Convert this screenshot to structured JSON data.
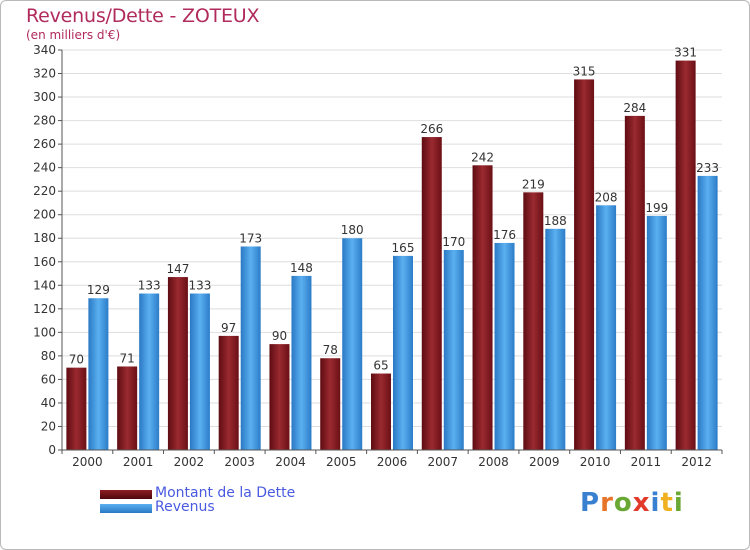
{
  "header": {
    "title": "Revenus/Dette - ZOTEUX",
    "subtitle": "(en milliers d'€)"
  },
  "chart_data": {
    "type": "bar",
    "categories": [
      "2000",
      "2001",
      "2002",
      "2003",
      "2004",
      "2005",
      "2006",
      "2007",
      "2008",
      "2009",
      "2010",
      "2011",
      "2012"
    ],
    "series": [
      {
        "name": "Montant de la Dette",
        "color": "#8b1f24",
        "values": [
          70,
          71,
          147,
          97,
          90,
          78,
          65,
          266,
          242,
          219,
          315,
          284,
          331
        ]
      },
      {
        "name": "Revenus",
        "color": "#3a95de",
        "values": [
          129,
          133,
          133,
          173,
          148,
          180,
          165,
          170,
          176,
          188,
          208,
          199,
          233
        ]
      }
    ],
    "yticks": [
      0,
      20,
      40,
      60,
      80,
      100,
      120,
      140,
      160,
      180,
      200,
      220,
      240,
      260,
      280,
      300,
      320,
      340
    ],
    "ylim": [
      0,
      340
    ],
    "grid": true,
    "legend_position": "bottom-left"
  },
  "legend": {
    "dette_label": "Montant de la Dette",
    "revenus_label": "Revenus"
  },
  "logo": {
    "text": "Proxiti",
    "letter_colors": [
      "#3a80d0",
      "#e8742a",
      "#6aa834",
      "#e23a2a",
      "#3a80d0",
      "#f0b020",
      "#6aa834"
    ]
  }
}
